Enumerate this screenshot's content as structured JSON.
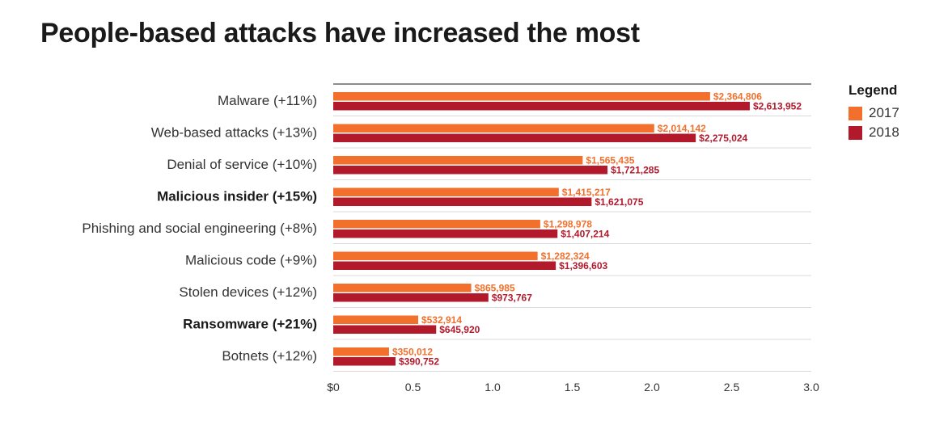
{
  "title": "People-based attacks have increased the most",
  "colors": {
    "s2017": "#f2702c",
    "s2018": "#b21a2c",
    "grid": "#d9d9d9",
    "axis": "#1a1a1a"
  },
  "legend": {
    "title": "Legend",
    "items": [
      "2017",
      "2018"
    ]
  },
  "chart_data": {
    "type": "bar",
    "orientation": "horizontal",
    "title": "People-based attacks have increased the most",
    "categories": [
      "Malware (+11%)",
      "Web-based attacks (+13%)",
      "Denial of service (+10%)",
      "Malicious insider (+15%)",
      "Phishing and social engineering (+8%)",
      "Malicious code (+9%)",
      "Stolen devices (+12%)",
      "Ransomware (+21%)",
      "Botnets (+12%)"
    ],
    "bold_categories": [
      "Malicious insider (+15%)",
      "Ransomware (+21%)"
    ],
    "series": [
      {
        "name": "2017",
        "values": [
          2364806,
          2014142,
          1565435,
          1415217,
          1298978,
          1282324,
          865985,
          532914,
          350012
        ],
        "labels": [
          "$2,364,806",
          "$2,014,142",
          "$1,565,435",
          "$1,415,217",
          "$1,298,978",
          "$1,282,324",
          "$865,985",
          "$532,914",
          "$350,012"
        ]
      },
      {
        "name": "2018",
        "values": [
          2613952,
          2275024,
          1721285,
          1621075,
          1407214,
          1396603,
          973767,
          645920,
          390752
        ],
        "labels": [
          "$2,613,952",
          "$2,275,024",
          "$1,721,285",
          "$1,621,075",
          "$1,407,214",
          "$1,396,603",
          "$973,767",
          "$645,920",
          "$390,752"
        ]
      }
    ],
    "xlim": [
      0,
      3000000
    ],
    "xticks": [
      0,
      500000,
      1000000,
      1500000,
      2000000,
      2500000,
      3000000
    ],
    "xtick_labels": [
      "$0",
      "0.5",
      "1.0",
      "1.5",
      "2.0",
      "2.5",
      "3.0"
    ],
    "legend_position": "top-right",
    "grid": "horizontal separators"
  }
}
